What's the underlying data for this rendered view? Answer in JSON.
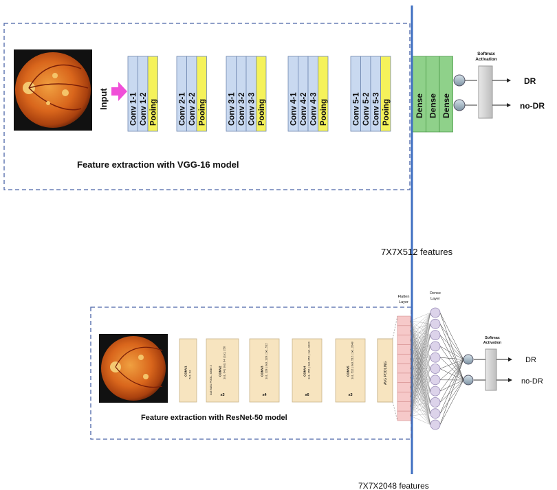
{
  "vgg": {
    "input_label": "Input",
    "blocks": [
      [
        "Conv 1-1",
        "Conv 1-2",
        "Pooing"
      ],
      [
        "Conv 2-1",
        "Conv 2-2",
        "Pooing"
      ],
      [
        "Conv 3-1",
        "Conv 3-2",
        "Conv 3-3",
        "Pooing"
      ],
      [
        "Conv 4-1",
        "Conv 4-2",
        "Conv 4-3",
        "Pooing"
      ],
      [
        "Conv 5-1",
        "Conv 5-2",
        "Conv 5-3",
        "Pooing"
      ]
    ],
    "dense": [
      "Dense",
      "Dense",
      "Dense"
    ],
    "softmax_label_1": "Softmax",
    "softmax_label_2": "Activation",
    "output_1": "DR",
    "output_2": "no-DR",
    "caption": "Feature extraction with VGG-16 model",
    "features": "7X7X512 features"
  },
  "resnet": {
    "stage_labels": [
      "CONV1",
      "CONV2",
      "CONV3",
      "CONV4",
      "CONV5"
    ],
    "stage_sub_1": "7x7, 64",
    "stage_sub_2": "3x3 MAX POOL, stride 2",
    "stage_sub_2b": "1x1, 64 | 3x3, 64 | 1x1, 256",
    "stage_sub_3": "1x1, 128 | 3x3, 128 | 1x1, 512",
    "stage_sub_4": "1x1, 256 | 3x3, 256 | 1x1, 1024",
    "stage_sub_5": "1x1, 512 | 3x3, 512 | 1x1, 2048",
    "repeats": [
      "x3",
      "x4",
      "x6",
      "x3"
    ],
    "pool": "AVG POOLING",
    "flatten_label_1": "Flatten",
    "flatten_label_2": "Layer",
    "dense_label_1": "Dense",
    "dense_label_2": "Layer",
    "softmax_label_1": "Softmax",
    "softmax_label_2": "Activation",
    "output_1": "DR",
    "output_2": "no-DR",
    "caption": "Feature extraction with ResNet-50 model",
    "features": "7X7X2048 features"
  },
  "colors": {
    "conv": "#c9d9f0",
    "pool": "#f5f25a",
    "dense": "#8fd18a",
    "res_stage": "#f7e4bf",
    "flatten": "#f6c9c9",
    "neuron": "#dcd3ea",
    "divider": "#3f6fc1",
    "arrow": "#f04fd8"
  }
}
